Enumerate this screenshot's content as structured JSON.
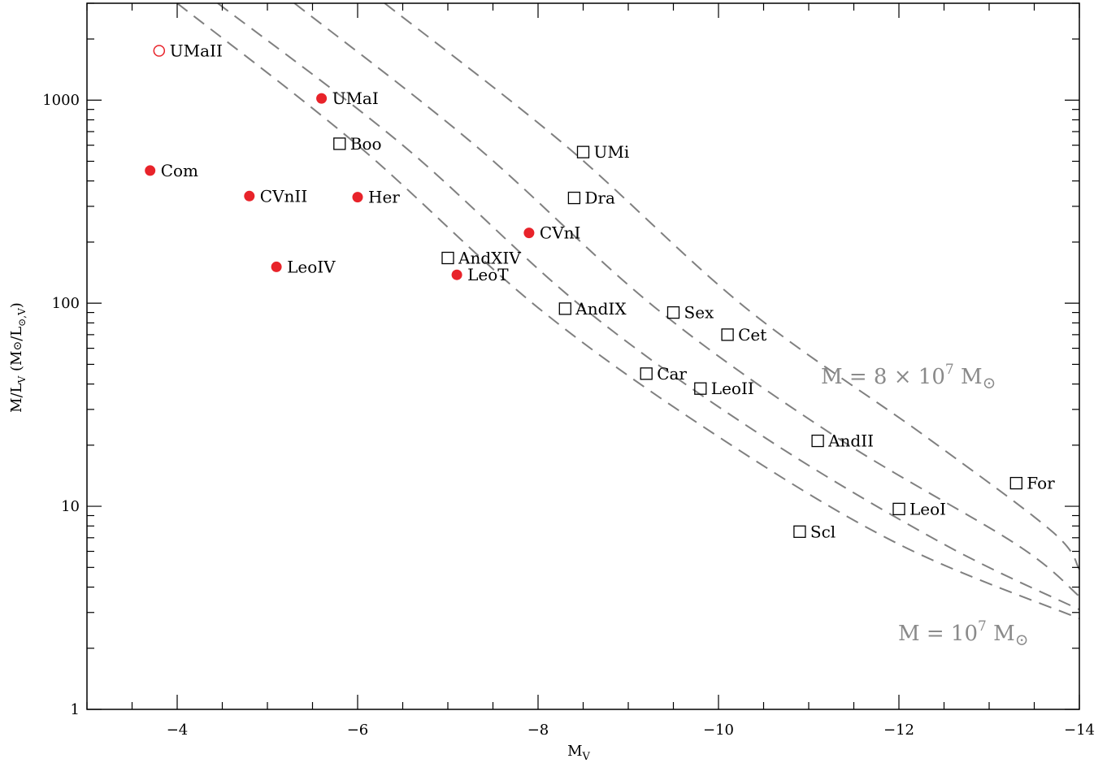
{
  "chart_data": {
    "type": "scatter",
    "title": "",
    "xlabel": "M",
    "xlabel_sub": "V",
    "ylabel_parts": [
      "M/L",
      "V",
      " (M",
      "⊙",
      "/L",
      "⊙,V",
      ")"
    ],
    "xlim": [
      -3,
      -14
    ],
    "ylim": [
      1,
      3000
    ],
    "yscale": "log",
    "grid": false,
    "x_ticks": [
      {
        "value": -4,
        "label": "−4"
      },
      {
        "value": -6,
        "label": "−6"
      },
      {
        "value": -8,
        "label": "−8"
      },
      {
        "value": -10,
        "label": "−10"
      },
      {
        "value": -12,
        "label": "−12"
      },
      {
        "value": -14,
        "label": "−14"
      }
    ],
    "y_ticks": [
      {
        "value": 1,
        "label": "1"
      },
      {
        "value": 10,
        "label": "10"
      },
      {
        "value": 100,
        "label": "100"
      },
      {
        "value": 1000,
        "label": "1000"
      }
    ],
    "colors": {
      "filled": "#e8232a",
      "open_circle": "#e8232a",
      "square": "#000000",
      "curve": "#808080",
      "curve_label": "#8a8a8a"
    },
    "series": [
      {
        "marker": "filled-circle",
        "points": [
          {
            "label": "UMaI",
            "x": -5.6,
            "y": 1020
          },
          {
            "label": "Com",
            "x": -3.7,
            "y": 450
          },
          {
            "label": "CVnII",
            "x": -4.8,
            "y": 337
          },
          {
            "label": "Her",
            "x": -6.0,
            "y": 333
          },
          {
            "label": "CVnI",
            "x": -7.9,
            "y": 222
          },
          {
            "label": "LeoIV",
            "x": -5.1,
            "y": 151
          },
          {
            "label": "LeoT",
            "x": -7.1,
            "y": 138
          }
        ]
      },
      {
        "marker": "open-circle",
        "points": [
          {
            "label": "UMaII",
            "x": -3.8,
            "y": 1750
          }
        ]
      },
      {
        "marker": "open-square",
        "points": [
          {
            "label": "Boo",
            "x": -5.8,
            "y": 610
          },
          {
            "label": "UMi",
            "x": -8.5,
            "y": 555
          },
          {
            "label": "Dra",
            "x": -8.4,
            "y": 330
          },
          {
            "label": "AndXIV",
            "x": -7.0,
            "y": 167
          },
          {
            "label": "AndIX",
            "x": -8.3,
            "y": 94
          },
          {
            "label": "Sex",
            "x": -9.5,
            "y": 90
          },
          {
            "label": "Cet",
            "x": -10.1,
            "y": 70
          },
          {
            "label": "Car",
            "x": -9.2,
            "y": 45
          },
          {
            "label": "LeoII",
            "x": -9.8,
            "y": 38
          },
          {
            "label": "AndII",
            "x": -11.1,
            "y": 21
          },
          {
            "label": "For",
            "x": -13.3,
            "y": 13
          },
          {
            "label": "LeoI",
            "x": -12.0,
            "y": 9.7
          },
          {
            "label": "Scl",
            "x": -10.9,
            "y": 7.5
          }
        ]
      }
    ],
    "curves": [
      {
        "style": "dashed",
        "points": [
          [
            -4.0,
            3000
          ],
          [
            -6,
            600
          ],
          [
            -8,
            95
          ],
          [
            -10,
            22
          ],
          [
            -12,
            6.5
          ],
          [
            -14,
            2.8
          ]
        ]
      },
      {
        "style": "dashed",
        "points": [
          [
            -4.45,
            3000
          ],
          [
            -6.5,
            600
          ],
          [
            -8.5,
            95
          ],
          [
            -10.5,
            22
          ],
          [
            -12.5,
            6.5
          ],
          [
            -14,
            3.1
          ]
        ]
      },
      {
        "style": "dashed",
        "points": [
          [
            -5.3,
            3000
          ],
          [
            -7.3,
            600
          ],
          [
            -9.3,
            95
          ],
          [
            -11.3,
            22
          ],
          [
            -13.3,
            6.5
          ],
          [
            -14,
            3.6
          ]
        ]
      },
      {
        "style": "dashed",
        "points": [
          [
            -6.3,
            3000
          ],
          [
            -8.3,
            600
          ],
          [
            -10.3,
            95
          ],
          [
            -12.3,
            22
          ],
          [
            -13.7,
            7.5
          ],
          [
            -14,
            4.9
          ]
        ]
      }
    ],
    "annotations": [
      {
        "text_main": "M  =  8 × 10",
        "sup": "7",
        "text_tail": " M",
        "sym": "⊙",
        "anchor": "upper-curve"
      },
      {
        "text_main": "M  =  10",
        "sup": "7",
        "text_tail": " M",
        "sym": "⊙",
        "anchor": "lower-curve"
      }
    ]
  }
}
